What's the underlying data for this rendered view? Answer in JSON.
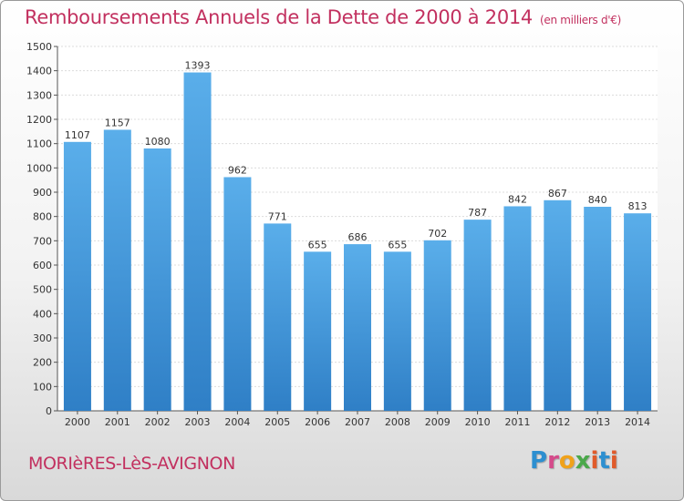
{
  "chart_data": {
    "type": "bar",
    "title": "Remboursements Annuels de la Dette de 2000 à 2014",
    "unit_note": "(en milliers d'€)",
    "categories": [
      "2000",
      "2001",
      "2002",
      "2003",
      "2004",
      "2005",
      "2006",
      "2007",
      "2008",
      "2009",
      "2010",
      "2011",
      "2012",
      "2013",
      "2014"
    ],
    "values": [
      1107,
      1157,
      1080,
      1393,
      962,
      771,
      655,
      686,
      655,
      702,
      787,
      842,
      867,
      840,
      813
    ],
    "ylim": [
      0,
      1500
    ],
    "yticks": [
      0,
      100,
      200,
      300,
      400,
      500,
      600,
      700,
      800,
      900,
      1000,
      1100,
      1200,
      1300,
      1400,
      1500
    ],
    "xlabel": "",
    "ylabel": "",
    "grid": true,
    "bar_color": "#4a9fe0"
  },
  "footer": {
    "town": "MORIèRES-LèS-AVIGNON",
    "logo": "Proxiti"
  }
}
